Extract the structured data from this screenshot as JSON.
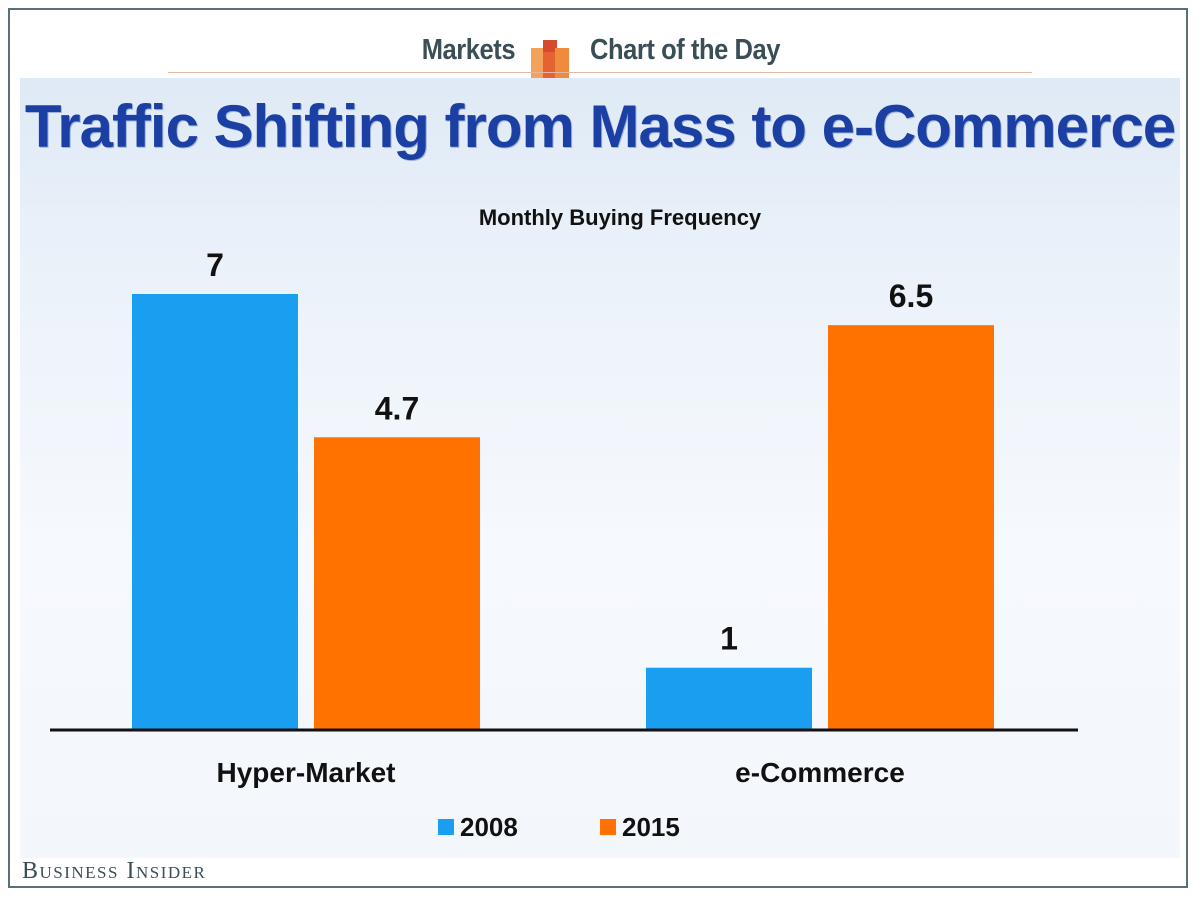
{
  "header": {
    "left_label": "Markets",
    "right_label": "Chart of the Day"
  },
  "source": "Business Insider",
  "colors": {
    "series_2008": "#1a9ff0",
    "series_2015": "#ff7200",
    "title": "#1b3fa3",
    "header_text": "#3a4e56"
  },
  "chart_data": {
    "type": "bar",
    "title": "Traffic Shifting from Mass to e-Commerce",
    "subtitle": "Monthly Buying Frequency",
    "categories": [
      "Hyper-Market",
      "e-Commerce"
    ],
    "series": [
      {
        "name": "2008",
        "values": [
          7,
          1
        ],
        "labels": [
          "7",
          "1"
        ]
      },
      {
        "name": "2015",
        "values": [
          4.7,
          6.5
        ],
        "labels": [
          "4.7",
          "6.5"
        ]
      }
    ],
    "xlabel": "",
    "ylabel": "",
    "ylim": [
      0,
      7
    ],
    "grid": false,
    "legend": "bottom-center"
  }
}
